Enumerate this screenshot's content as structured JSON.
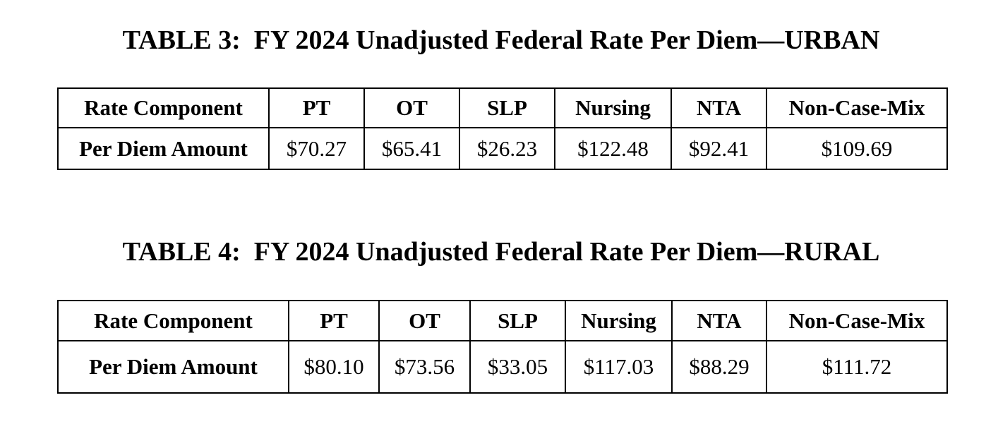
{
  "tables": [
    {
      "title": "TABLE 3:  FY 2024 Unadjusted Federal Rate Per Diem—URBAN",
      "headers": [
        "Rate Component",
        "PT",
        "OT",
        "SLP",
        "Nursing",
        "NTA",
        "Non-Case-Mix"
      ],
      "row_label": "Per Diem Amount",
      "values": [
        "$70.27",
        "$65.41",
        "$26.23",
        "$122.48",
        "$92.41",
        "$109.69"
      ]
    },
    {
      "title": "TABLE 4:  FY 2024 Unadjusted Federal Rate Per Diem—RURAL",
      "headers": [
        "Rate Component",
        "PT",
        "OT",
        "SLP",
        "Nursing",
        "NTA",
        "Non-Case-Mix"
      ],
      "row_label": "Per Diem Amount",
      "values": [
        "$80.10",
        "$73.56",
        "$33.05",
        "$117.03",
        "$88.29",
        "$111.72"
      ]
    }
  ]
}
